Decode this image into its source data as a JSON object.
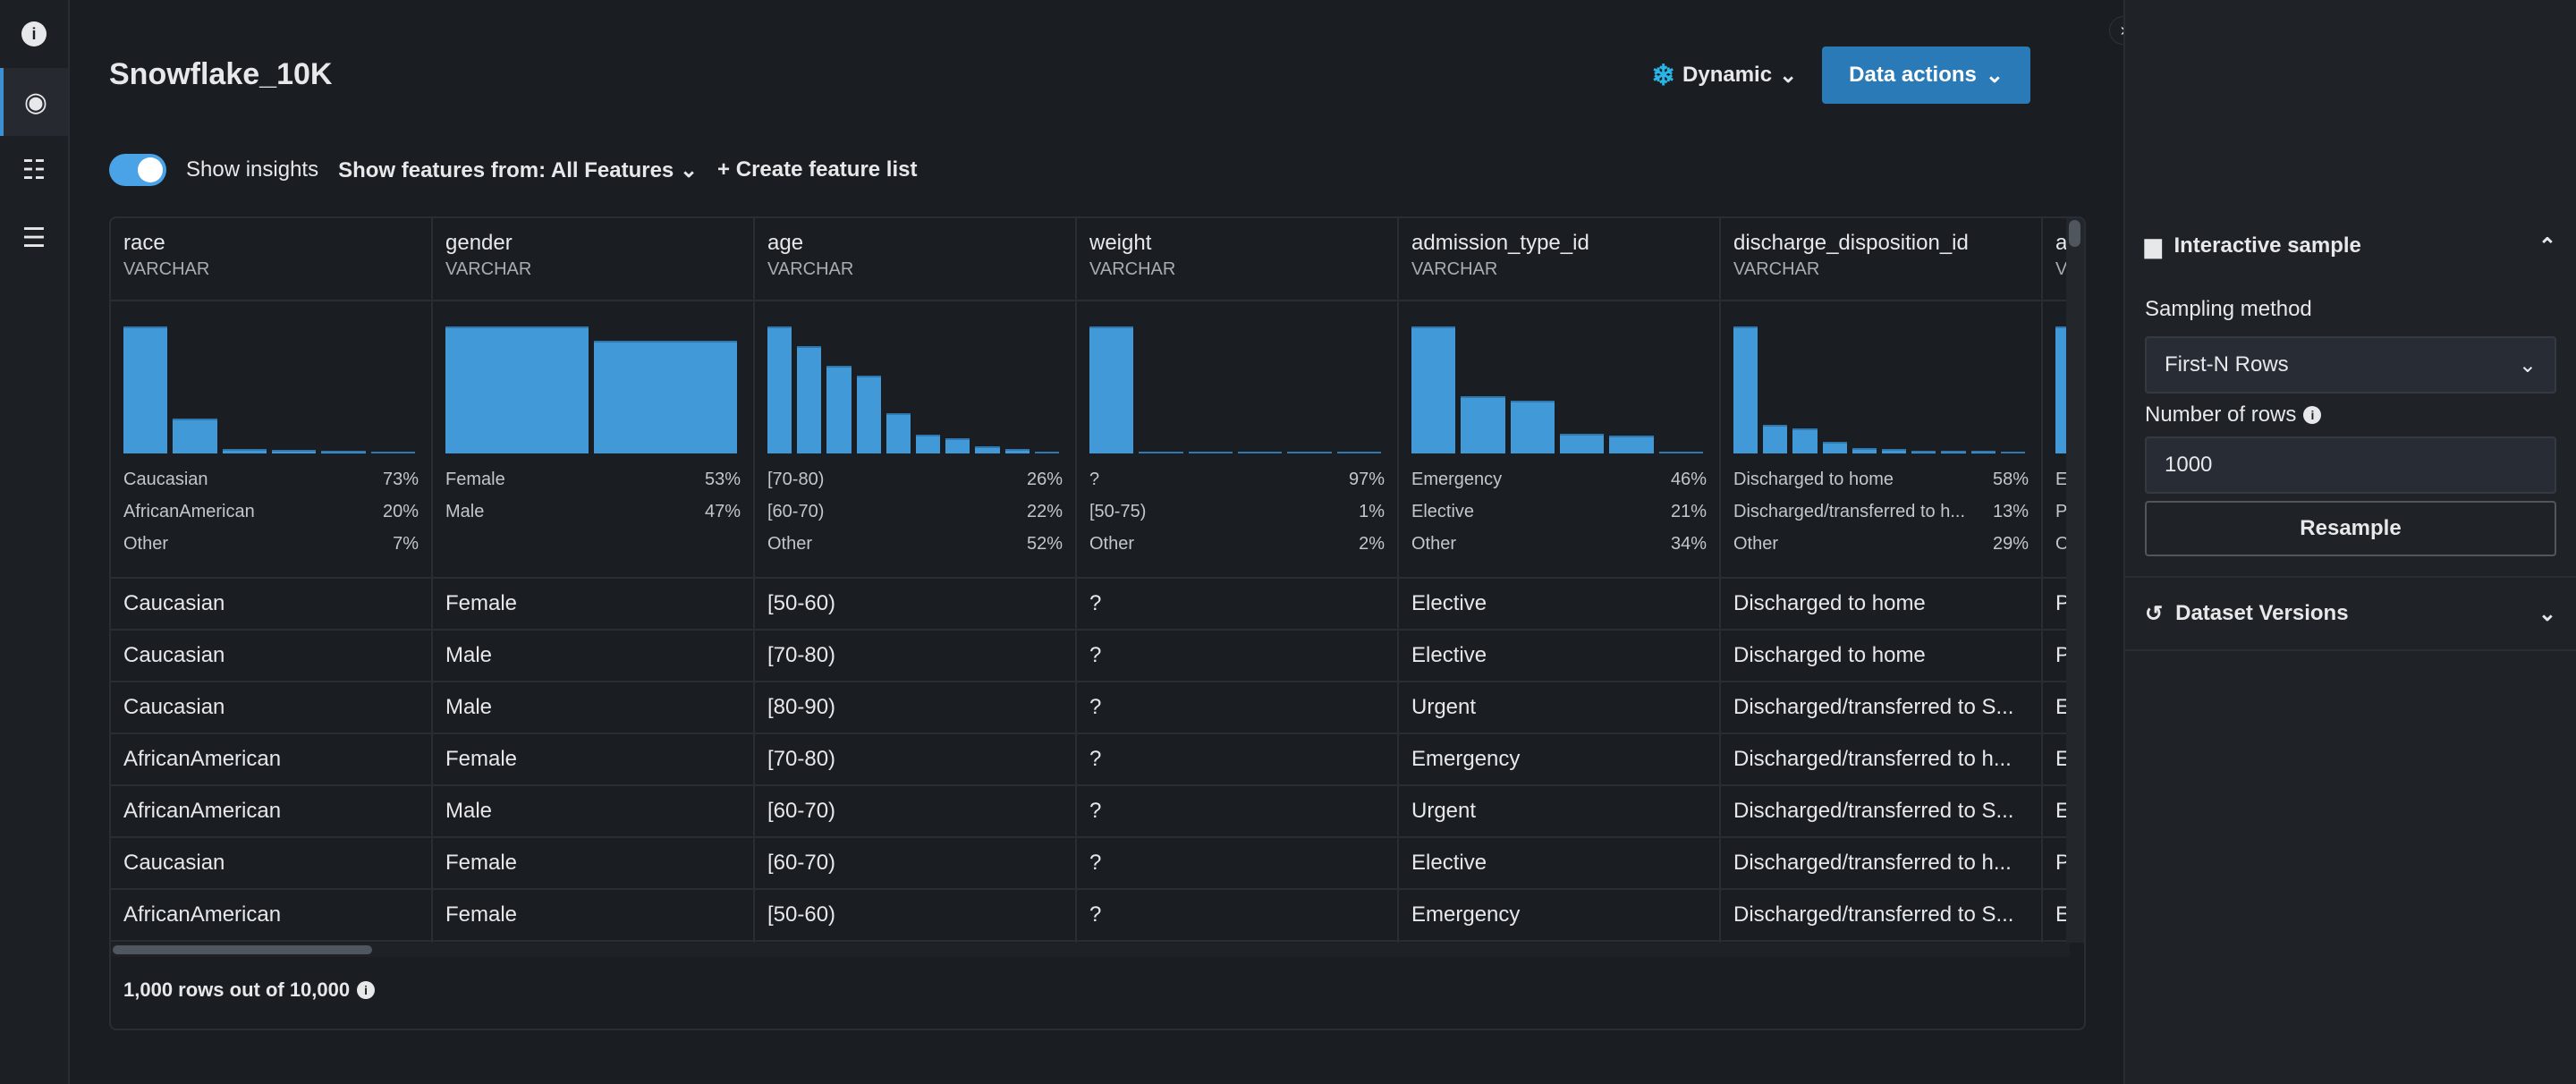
{
  "rail": {
    "items": [
      {
        "icon": "info-icon"
      },
      {
        "icon": "eye-icon",
        "active": true
      },
      {
        "icon": "data-grid-icon"
      },
      {
        "icon": "list-icon"
      }
    ]
  },
  "header": {
    "title": "Snowflake_10K",
    "dynamic_label": "Dynamic",
    "data_actions_label": "Data actions"
  },
  "toolbar": {
    "show_insights_label": "Show insights",
    "show_insights_on": true,
    "features_label": "Show features from: All Features",
    "create_feature_list_label": "+ Create feature list"
  },
  "colors": {
    "accent": "#2b7ab8",
    "bar": "#4299d8",
    "snowflake": "#29b5e8",
    "background": "#1a1d21"
  },
  "table": {
    "columns": [
      {
        "name": "race",
        "type": "VARCHAR",
        "hist": [
          73,
          20,
          2.4,
          1.9,
          1.3,
          0.7
        ],
        "stats": [
          [
            "Caucasian",
            "73%"
          ],
          [
            "AfricanAmerican",
            "20%"
          ],
          [
            "Other",
            "7%"
          ]
        ]
      },
      {
        "name": "gender",
        "type": "VARCHAR",
        "hist": [
          53,
          47
        ],
        "stats": [
          [
            "Female",
            "53%"
          ],
          [
            "Male",
            "47%"
          ]
        ]
      },
      {
        "name": "age",
        "type": "VARCHAR",
        "hist": [
          26,
          22,
          17.9,
          16,
          8.3,
          3.9,
          3.1,
          1.4,
          1,
          0.2
        ],
        "stats": [
          [
            "[70-80)",
            "26%"
          ],
          [
            "[60-70)",
            "22%"
          ],
          [
            "Other",
            "52%"
          ]
        ]
      },
      {
        "name": "weight",
        "type": "VARCHAR",
        "hist": [
          97,
          0.5,
          0.5,
          0.5,
          0.5,
          0.5
        ],
        "stats": [
          [
            "?",
            "97%"
          ],
          [
            "[50-75)",
            "1%"
          ],
          [
            "Other",
            "2%"
          ]
        ]
      },
      {
        "name": "admission_type_id",
        "type": "VARCHAR",
        "hist": [
          46,
          20.7,
          19,
          7,
          6.5,
          0.5
        ],
        "stats": [
          [
            "Emergency",
            "46%"
          ],
          [
            "Elective",
            "21%"
          ],
          [
            "Other",
            "34%"
          ]
        ]
      },
      {
        "name": "discharge_disposition_id",
        "type": "VARCHAR",
        "hist": [
          58,
          13.1,
          11.4,
          5.4,
          2.6,
          2.1,
          1.3,
          1.3,
          1.1,
          0.9
        ],
        "stats": [
          [
            "Discharged to home",
            "58%"
          ],
          [
            "Discharged/transferred to h...",
            "13%"
          ],
          [
            "Other",
            "29%"
          ]
        ]
      },
      {
        "name": "ad",
        "type": "VA",
        "hist": [
          60
        ],
        "stats": [
          [
            "Er",
            ""
          ],
          [
            "Pl",
            ""
          ],
          [
            "Ot",
            ""
          ]
        ]
      }
    ],
    "rows": [
      [
        "Caucasian",
        "Female",
        "[50-60)",
        "?",
        "Elective",
        "Discharged to home",
        "P"
      ],
      [
        "Caucasian",
        "Male",
        "[70-80)",
        "?",
        "Elective",
        "Discharged to home",
        "P"
      ],
      [
        "Caucasian",
        "Male",
        "[80-90)",
        "?",
        "Urgent",
        "Discharged/transferred to S...",
        "Er"
      ],
      [
        "AfricanAmerican",
        "Female",
        "[70-80)",
        "?",
        "Emergency",
        "Discharged/transferred to h...",
        "Er"
      ],
      [
        "AfricanAmerican",
        "Male",
        "[60-70)",
        "?",
        "Urgent",
        "Discharged/transferred to S...",
        "Er"
      ],
      [
        "Caucasian",
        "Female",
        "[60-70)",
        "?",
        "Elective",
        "Discharged/transferred to h...",
        "P"
      ],
      [
        "AfricanAmerican",
        "Female",
        "[50-60)",
        "?",
        "Emergency",
        "Discharged/transferred to S...",
        "Er"
      ]
    ],
    "footer": "1,000 rows out of 10,000"
  },
  "panel": {
    "interactive_sample_title": "Interactive sample",
    "sampling_method_label": "Sampling method",
    "sampling_method_value": "First-N Rows",
    "rows_label": "Number of rows",
    "rows_value": "1000",
    "resample_label": "Resample",
    "dataset_versions_title": "Dataset Versions"
  }
}
